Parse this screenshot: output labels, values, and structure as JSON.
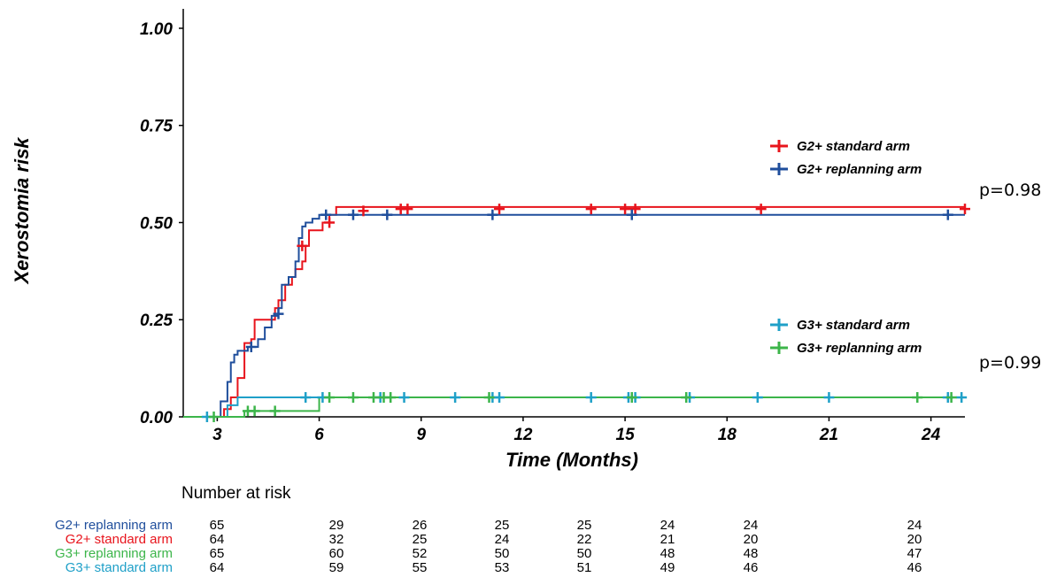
{
  "chart_data": {
    "type": "line",
    "ylabel": "Xerostomia risk",
    "xlabel": "Time (Months)",
    "xlim": [
      2.0,
      25.0
    ],
    "ylim": [
      0.0,
      1.05
    ],
    "x_ticks": [
      3,
      6,
      9,
      12,
      15,
      18,
      21,
      24
    ],
    "x_tick_labels": [
      "3",
      "6",
      "9",
      "12",
      "15",
      "18",
      "21",
      "24"
    ],
    "y_ticks": [
      0.0,
      0.25,
      0.5,
      0.75,
      1.0
    ],
    "y_tick_labels": [
      "0.00",
      "0.25",
      "0.50",
      "0.75",
      "1.00"
    ],
    "legend_groups": [
      {
        "placement": "upper-right",
        "entries": [
          "G2+ standard arm",
          "G2+ replanning arm"
        ]
      },
      {
        "placement": "lower-right",
        "entries": [
          "G3+ standard arm",
          "G3+ replanning arm"
        ]
      }
    ],
    "series": [
      {
        "name": "G2+ standard arm",
        "color": "#e8141c",
        "step_x": [
          2.0,
          3.2,
          3.4,
          3.6,
          3.8,
          4.0,
          4.1,
          4.2,
          4.3,
          4.6,
          4.7,
          4.8,
          5.0,
          5.2,
          5.3,
          5.5,
          5.6,
          5.7,
          6.1,
          6.3,
          6.5,
          25.0
        ],
        "step_y": [
          0.0,
          0.02,
          0.05,
          0.1,
          0.19,
          0.2,
          0.25,
          0.25,
          0.25,
          0.25,
          0.28,
          0.3,
          0.34,
          0.36,
          0.38,
          0.4,
          0.44,
          0.48,
          0.5,
          0.52,
          0.54,
          0.54
        ],
        "censor_x": [
          5.5,
          6.3,
          7.3,
          8.4,
          8.6,
          11.3,
          14.0,
          15.0,
          15.3,
          19.0,
          25.0
        ],
        "censor_y": [
          0.44,
          0.5,
          0.53,
          0.535,
          0.535,
          0.535,
          0.535,
          0.535,
          0.535,
          0.535,
          0.535
        ]
      },
      {
        "name": "G2+ replanning arm",
        "color": "#1f4e9c",
        "step_x": [
          2.0,
          3.1,
          3.3,
          3.4,
          3.5,
          3.6,
          3.9,
          4.2,
          4.4,
          4.6,
          4.8,
          4.9,
          5.1,
          5.3,
          5.4,
          5.5,
          5.6,
          5.8,
          6.0,
          6.5,
          25.0
        ],
        "step_y": [
          0.0,
          0.04,
          0.09,
          0.14,
          0.16,
          0.17,
          0.18,
          0.2,
          0.23,
          0.26,
          0.28,
          0.34,
          0.36,
          0.4,
          0.46,
          0.49,
          0.5,
          0.51,
          0.52,
          0.52,
          0.52
        ],
        "censor_x": [
          4.0,
          4.8,
          6.2,
          7.0,
          8.0,
          11.1,
          15.2,
          24.5
        ],
        "censor_y": [
          0.18,
          0.265,
          0.52,
          0.52,
          0.52,
          0.52,
          0.52,
          0.52
        ]
      },
      {
        "name": "G3+ standard arm",
        "color": "#1fa0c8",
        "step_x": [
          2.0,
          3.0,
          3.3,
          3.6,
          4.0,
          25.0
        ],
        "step_y": [
          0.0,
          0.0,
          0.03,
          0.05,
          0.05,
          0.05
        ],
        "censor_x": [
          2.7,
          5.6,
          6.1,
          7.8,
          8.5,
          10.0,
          11.1,
          11.3,
          14.0,
          15.1,
          15.3,
          16.9,
          18.9,
          21.0,
          24.5,
          24.9
        ],
        "censor_y": [
          0.0,
          0.05,
          0.05,
          0.05,
          0.05,
          0.05,
          0.05,
          0.05,
          0.05,
          0.05,
          0.05,
          0.05,
          0.05,
          0.05,
          0.05,
          0.05
        ]
      },
      {
        "name": "G3+ replanning arm",
        "color": "#3cb54a",
        "step_x": [
          2.0,
          3.0,
          3.4,
          3.8,
          5.0,
          6.0,
          25.0
        ],
        "step_y": [
          0.0,
          0.0,
          0.0,
          0.015,
          0.015,
          0.05,
          0.05
        ],
        "censor_x": [
          2.9,
          3.9,
          4.1,
          4.7,
          6.3,
          7.0,
          7.6,
          7.9,
          8.1,
          11.0,
          15.2,
          16.8,
          23.6,
          24.6
        ],
        "censor_y": [
          0.0,
          0.015,
          0.015,
          0.015,
          0.05,
          0.05,
          0.05,
          0.05,
          0.05,
          0.05,
          0.05,
          0.05,
          0.05,
          0.05
        ]
      }
    ],
    "annotations": [
      "p=0.98",
      "p=0.99"
    ],
    "risk_table": {
      "title": "Number at risk",
      "rows": [
        {
          "label": "G2+ replanning arm",
          "color": "#1f4e9c",
          "values": [
            "65",
            "29",
            "26",
            "25",
            "25",
            "24",
            "24",
            "24"
          ]
        },
        {
          "label": "G2+ standard arm",
          "color": "#e8141c",
          "values": [
            "64",
            "32",
            "25",
            "24",
            "22",
            "21",
            "20",
            "20"
          ]
        },
        {
          "label": "G3+ replanning arm",
          "color": "#3cb54a",
          "values": [
            "65",
            "60",
            "52",
            "50",
            "50",
            "48",
            "48",
            "47"
          ]
        },
        {
          "label": "G3+ standard arm",
          "color": "#1fa0c8",
          "values": [
            "64",
            "59",
            "55",
            "53",
            "51",
            "49",
            "46",
            "46"
          ]
        }
      ]
    }
  }
}
